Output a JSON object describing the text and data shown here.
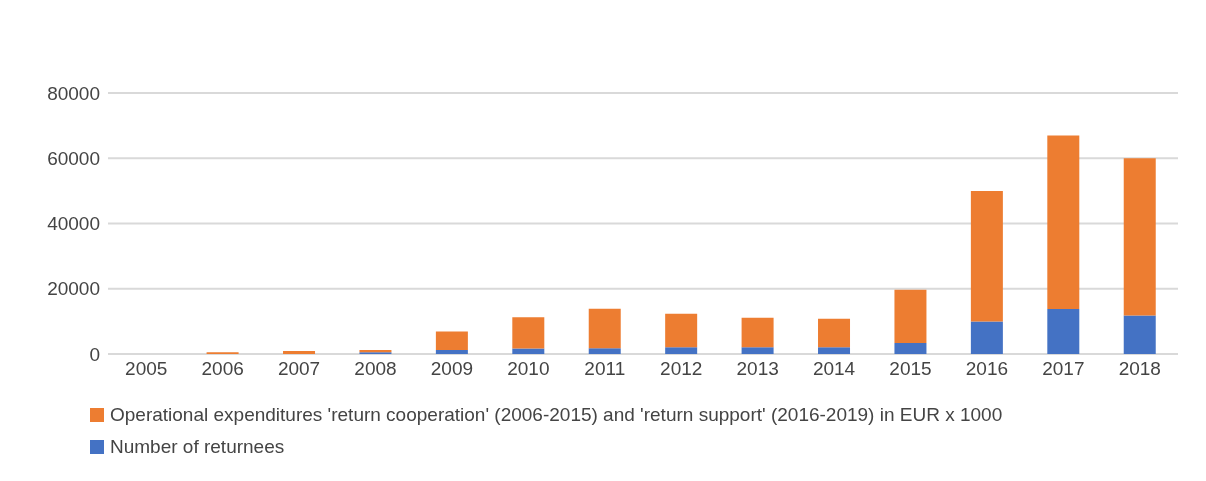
{
  "chart_data": {
    "type": "bar",
    "stacked": true,
    "categories": [
      "2005",
      "2006",
      "2007",
      "2008",
      "2009",
      "2010",
      "2011",
      "2012",
      "2013",
      "2014",
      "2015",
      "2016",
      "2017",
      "2018"
    ],
    "series": [
      {
        "name": "Number of returnees",
        "color": "#4472c4",
        "values": [
          0,
          0,
          0,
          500,
          1200,
          1700,
          1800,
          2100,
          2100,
          2100,
          3400,
          10000,
          13800,
          11800
        ]
      },
      {
        "name": "Operational expenditures 'return cooperation' (2006-2015) and 'return support' (2016-2019) in EUR x 1000",
        "color": "#ed7d31",
        "values": [
          0,
          500,
          900,
          700,
          5700,
          9600,
          12100,
          10200,
          9000,
          8700,
          16300,
          40000,
          53200,
          48200
        ]
      }
    ],
    "ylim": [
      0,
      80000
    ],
    "yticks": [
      0,
      20000,
      40000,
      60000,
      80000
    ],
    "grid": "y",
    "legend": "bottom"
  }
}
